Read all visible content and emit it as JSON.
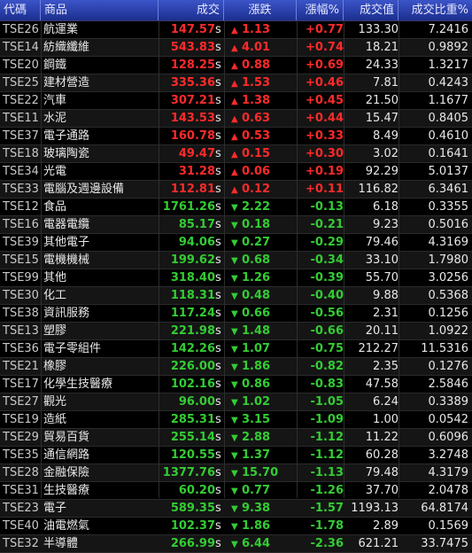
{
  "header": {
    "code": "代碼",
    "name": "商品",
    "price": "成交",
    "change": "漲跌",
    "pct": "漲幅%",
    "volume": "成交值",
    "ratio": "成交比重%"
  },
  "price_suffix": "s",
  "colors": {
    "up": "#ff2a2a",
    "down": "#33cc33",
    "header_bg": "#2d45b8"
  },
  "rows": [
    {
      "code": "TSE26",
      "name": "航運業",
      "price": "147.57",
      "dir": "up",
      "change": "1.13",
      "pct": "+0.77",
      "volume": "133.30",
      "ratio": "7.2416"
    },
    {
      "code": "TSE14",
      "name": "紡織纖維",
      "price": "543.83",
      "dir": "up",
      "change": "4.01",
      "pct": "+0.74",
      "volume": "18.21",
      "ratio": "0.9892"
    },
    {
      "code": "TSE20",
      "name": "鋼鐵",
      "price": "128.25",
      "dir": "up",
      "change": "0.88",
      "pct": "+0.69",
      "volume": "24.33",
      "ratio": "1.3217"
    },
    {
      "code": "TSE25",
      "name": "建材營造",
      "price": "335.36",
      "dir": "up",
      "change": "1.53",
      "pct": "+0.46",
      "volume": "7.81",
      "ratio": "0.4243"
    },
    {
      "code": "TSE22",
      "name": "汽車",
      "price": "307.21",
      "dir": "up",
      "change": "1.38",
      "pct": "+0.45",
      "volume": "21.50",
      "ratio": "1.1677"
    },
    {
      "code": "TSE11",
      "name": "水泥",
      "price": "143.53",
      "dir": "up",
      "change": "0.63",
      "pct": "+0.44",
      "volume": "15.47",
      "ratio": "0.8405"
    },
    {
      "code": "TSE37",
      "name": "電子通路",
      "price": "160.78",
      "dir": "up",
      "change": "0.53",
      "pct": "+0.33",
      "volume": "8.49",
      "ratio": "0.4610"
    },
    {
      "code": "TSE18",
      "name": "玻璃陶瓷",
      "price": "49.47",
      "dir": "up",
      "change": "0.15",
      "pct": "+0.30",
      "volume": "3.02",
      "ratio": "0.1641"
    },
    {
      "code": "TSE34",
      "name": "光電",
      "price": "31.28",
      "dir": "up",
      "change": "0.06",
      "pct": "+0.19",
      "volume": "92.29",
      "ratio": "5.0137"
    },
    {
      "code": "TSE33",
      "name": "電腦及週邊設備",
      "price": "112.81",
      "dir": "up",
      "change": "0.12",
      "pct": "+0.11",
      "volume": "116.82",
      "ratio": "6.3461"
    },
    {
      "code": "TSE12",
      "name": "食品",
      "price": "1761.26",
      "dir": "down",
      "change": "2.22",
      "pct": "-0.13",
      "volume": "6.18",
      "ratio": "0.3355"
    },
    {
      "code": "TSE16",
      "name": "電器電纜",
      "price": "85.17",
      "dir": "down",
      "change": "0.18",
      "pct": "-0.21",
      "volume": "9.23",
      "ratio": "0.5016"
    },
    {
      "code": "TSE39",
      "name": "其他電子",
      "price": "94.06",
      "dir": "down",
      "change": "0.27",
      "pct": "-0.29",
      "volume": "79.46",
      "ratio": "4.3169"
    },
    {
      "code": "TSE15",
      "name": "電機機械",
      "price": "199.62",
      "dir": "down",
      "change": "0.68",
      "pct": "-0.34",
      "volume": "33.10",
      "ratio": "1.7980"
    },
    {
      "code": "TSE99",
      "name": "其他",
      "price": "318.40",
      "dir": "down",
      "change": "1.26",
      "pct": "-0.39",
      "volume": "55.70",
      "ratio": "3.0256"
    },
    {
      "code": "TSE30",
      "name": "化工",
      "price": "118.31",
      "dir": "down",
      "change": "0.48",
      "pct": "-0.40",
      "volume": "9.88",
      "ratio": "0.5368"
    },
    {
      "code": "TSE38",
      "name": "資訊服務",
      "price": "117.24",
      "dir": "down",
      "change": "0.66",
      "pct": "-0.56",
      "volume": "2.31",
      "ratio": "0.1256"
    },
    {
      "code": "TSE13",
      "name": "塑膠",
      "price": "221.98",
      "dir": "down",
      "change": "1.48",
      "pct": "-0.66",
      "volume": "20.11",
      "ratio": "1.0922"
    },
    {
      "code": "TSE36",
      "name": "電子零組件",
      "price": "142.26",
      "dir": "down",
      "change": "1.07",
      "pct": "-0.75",
      "volume": "212.27",
      "ratio": "11.5316"
    },
    {
      "code": "TSE21",
      "name": "橡膠",
      "price": "226.00",
      "dir": "down",
      "change": "1.86",
      "pct": "-0.82",
      "volume": "2.35",
      "ratio": "0.1276"
    },
    {
      "code": "TSE17",
      "name": "化學生技醫療",
      "price": "102.16",
      "dir": "down",
      "change": "0.86",
      "pct": "-0.83",
      "volume": "47.58",
      "ratio": "2.5846"
    },
    {
      "code": "TSE27",
      "name": "觀光",
      "price": "96.00",
      "dir": "down",
      "change": "1.02",
      "pct": "-1.05",
      "volume": "6.24",
      "ratio": "0.3389"
    },
    {
      "code": "TSE19",
      "name": "造紙",
      "price": "285.31",
      "dir": "down",
      "change": "3.15",
      "pct": "-1.09",
      "volume": "1.00",
      "ratio": "0.0542"
    },
    {
      "code": "TSE29",
      "name": "貿易百貨",
      "price": "255.14",
      "dir": "down",
      "change": "2.88",
      "pct": "-1.12",
      "volume": "11.22",
      "ratio": "0.6096"
    },
    {
      "code": "TSE35",
      "name": "通信網路",
      "price": "120.55",
      "dir": "down",
      "change": "1.37",
      "pct": "-1.12",
      "volume": "60.28",
      "ratio": "3.2748"
    },
    {
      "code": "TSE28",
      "name": "金融保險",
      "price": "1377.76",
      "dir": "down",
      "change": "15.70",
      "pct": "-1.13",
      "volume": "79.48",
      "ratio": "4.3179"
    },
    {
      "code": "TSE31",
      "name": "生技醫療",
      "price": "60.20",
      "dir": "down",
      "change": "0.77",
      "pct": "-1.26",
      "volume": "37.70",
      "ratio": "2.0478"
    },
    {
      "code": "TSE23",
      "name": "電子",
      "price": "589.35",
      "dir": "down",
      "change": "9.38",
      "pct": "-1.57",
      "volume": "1193.13",
      "ratio": "64.8174"
    },
    {
      "code": "TSE40",
      "name": "油電燃氣",
      "price": "102.37",
      "dir": "down",
      "change": "1.86",
      "pct": "-1.78",
      "volume": "2.89",
      "ratio": "0.1569"
    },
    {
      "code": "TSE32",
      "name": "半導體",
      "price": "266.99",
      "dir": "down",
      "change": "6.44",
      "pct": "-2.36",
      "volume": "621.21",
      "ratio": "33.7475"
    }
  ]
}
